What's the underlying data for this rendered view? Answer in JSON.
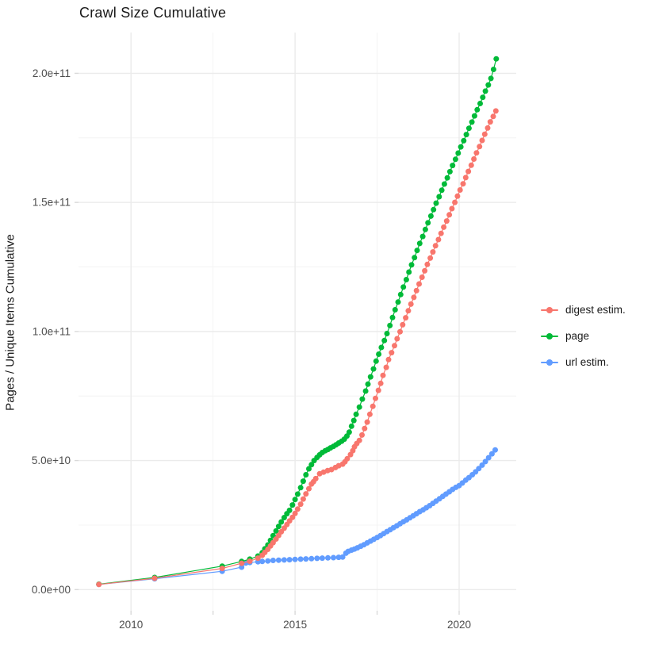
{
  "chart": {
    "title": "Crawl Size Cumulative",
    "y_axis_title": "Pages / Unique Items Cumulative",
    "x_axis_title": "",
    "background_color": "#ffffff",
    "major_grid_color": "#ebebeb",
    "minor_grid_color": "#f4f4f4",
    "tick_color": "#d9d9d9",
    "tick_label_color": "#4d4d4d"
  },
  "chart_data": {
    "type": "scatter",
    "style": "points connected by thin lines (ggplot geom_point + geom_line)",
    "title": "Crawl Size Cumulative",
    "xlabel": "",
    "ylabel": "Pages / Unique Items Cumulative",
    "x_unit": "decimal year",
    "value_unit": "1e9 pages (billions)",
    "xlim": [
      2008.4,
      2021.74
    ],
    "ylim_e9": [
      -8.2,
      215.8
    ],
    "grid": true,
    "legend_position": "right",
    "x_ticks": [
      {
        "label": "2010",
        "value": 2010
      },
      {
        "label": "2015",
        "value": 2015
      },
      {
        "label": "2020",
        "value": 2020
      }
    ],
    "x_minor": [
      2012.5,
      2017.5
    ],
    "y_ticks": [
      {
        "label": "0.0e+00",
        "value": 0
      },
      {
        "label": "5.0e+10",
        "value": 50
      },
      {
        "label": "1.0e+11",
        "value": 100
      },
      {
        "label": "1.5e+11",
        "value": 150
      },
      {
        "label": "2.0e+11",
        "value": 200
      }
    ],
    "y_minor": [
      25,
      75,
      125,
      175
    ],
    "point_radius": 3.5,
    "series": [
      {
        "name": "url estim.",
        "color": "#619CFF",
        "points": [
          [
            2009.02,
            2.0
          ],
          [
            2010.72,
            4.2
          ],
          [
            2012.78,
            7.1
          ],
          [
            2013.37,
            8.7
          ],
          [
            2013.5,
            10.3
          ],
          [
            2013.62,
            10.5
          ],
          [
            2013.87,
            10.8
          ],
          [
            2014.0,
            10.9
          ],
          [
            2014.17,
            11.1
          ],
          [
            2014.33,
            11.3
          ],
          [
            2014.5,
            11.4
          ],
          [
            2014.67,
            11.5
          ],
          [
            2014.83,
            11.6
          ],
          [
            2015.0,
            11.7
          ],
          [
            2015.17,
            11.8
          ],
          [
            2015.33,
            11.9
          ],
          [
            2015.5,
            12.0
          ],
          [
            2015.67,
            12.1
          ],
          [
            2015.83,
            12.2
          ],
          [
            2016.0,
            12.3
          ],
          [
            2016.17,
            12.4
          ],
          [
            2016.33,
            12.5
          ],
          [
            2016.45,
            12.6
          ],
          [
            2016.55,
            14.1
          ],
          [
            2016.62,
            14.8
          ],
          [
            2016.72,
            15.3
          ],
          [
            2016.81,
            15.7
          ],
          [
            2016.9,
            16.2
          ],
          [
            2017.0,
            16.8
          ],
          [
            2017.1,
            17.4
          ],
          [
            2017.2,
            18.1
          ],
          [
            2017.3,
            18.8
          ],
          [
            2017.4,
            19.5
          ],
          [
            2017.5,
            20.2
          ],
          [
            2017.6,
            20.9
          ],
          [
            2017.7,
            21.7
          ],
          [
            2017.8,
            22.5
          ],
          [
            2017.9,
            23.2
          ],
          [
            2018.0,
            24.0
          ],
          [
            2018.1,
            24.7
          ],
          [
            2018.2,
            25.5
          ],
          [
            2018.3,
            26.3
          ],
          [
            2018.4,
            27.0
          ],
          [
            2018.5,
            27.8
          ],
          [
            2018.6,
            28.6
          ],
          [
            2018.7,
            29.4
          ],
          [
            2018.8,
            30.2
          ],
          [
            2018.9,
            30.9
          ],
          [
            2019.0,
            31.7
          ],
          [
            2019.1,
            32.5
          ],
          [
            2019.2,
            33.4
          ],
          [
            2019.3,
            34.3
          ],
          [
            2019.4,
            35.2
          ],
          [
            2019.5,
            36.1
          ],
          [
            2019.6,
            37.0
          ],
          [
            2019.7,
            37.9
          ],
          [
            2019.8,
            38.8
          ],
          [
            2019.9,
            39.6
          ],
          [
            2020.0,
            40.3
          ],
          [
            2020.1,
            41.3
          ],
          [
            2020.2,
            42.4
          ],
          [
            2020.3,
            43.4
          ],
          [
            2020.4,
            44.5
          ],
          [
            2020.5,
            45.6
          ],
          [
            2020.6,
            46.9
          ],
          [
            2020.7,
            48.2
          ],
          [
            2020.8,
            49.6
          ],
          [
            2020.9,
            51.1
          ],
          [
            2021.0,
            52.6
          ],
          [
            2021.1,
            54.1
          ]
        ]
      },
      {
        "name": "page",
        "color": "#00BA38",
        "points": [
          [
            2009.02,
            2.1
          ],
          [
            2010.72,
            4.7
          ],
          [
            2012.78,
            9.1
          ],
          [
            2013.37,
            10.9
          ],
          [
            2013.62,
            11.8
          ],
          [
            2013.87,
            13.0
          ],
          [
            2014.0,
            14.3
          ],
          [
            2014.08,
            15.8
          ],
          [
            2014.17,
            17.3
          ],
          [
            2014.25,
            19.1
          ],
          [
            2014.33,
            20.9
          ],
          [
            2014.42,
            22.7
          ],
          [
            2014.5,
            24.5
          ],
          [
            2014.58,
            26.2
          ],
          [
            2014.67,
            27.9
          ],
          [
            2014.75,
            29.4
          ],
          [
            2014.83,
            30.7
          ],
          [
            2014.92,
            32.8
          ],
          [
            2015.0,
            34.9
          ],
          [
            2015.08,
            37.0
          ],
          [
            2015.17,
            39.5
          ],
          [
            2015.25,
            42.0
          ],
          [
            2015.33,
            44.5
          ],
          [
            2015.42,
            46.8
          ],
          [
            2015.5,
            48.4
          ],
          [
            2015.58,
            50.0
          ],
          [
            2015.67,
            51.2
          ],
          [
            2015.75,
            52.2
          ],
          [
            2015.83,
            53.1
          ],
          [
            2015.92,
            53.8
          ],
          [
            2016.0,
            54.3
          ],
          [
            2016.08,
            54.9
          ],
          [
            2016.17,
            55.5
          ],
          [
            2016.25,
            56.1
          ],
          [
            2016.33,
            56.8
          ],
          [
            2016.42,
            57.5
          ],
          [
            2016.5,
            58.3
          ],
          [
            2016.58,
            59.5
          ],
          [
            2016.65,
            61.0
          ],
          [
            2016.72,
            63.3
          ],
          [
            2016.79,
            65.5
          ],
          [
            2016.86,
            67.9
          ],
          [
            2016.96,
            70.7
          ],
          [
            2017.05,
            73.8
          ],
          [
            2017.15,
            76.9
          ],
          [
            2017.22,
            79.6
          ],
          [
            2017.3,
            82.4
          ],
          [
            2017.39,
            85.5
          ],
          [
            2017.47,
            88.5
          ],
          [
            2017.55,
            91.2
          ],
          [
            2017.63,
            93.8
          ],
          [
            2017.72,
            96.5
          ],
          [
            2017.8,
            99.2
          ],
          [
            2017.89,
            102.3
          ],
          [
            2017.97,
            105.4
          ],
          [
            2018.05,
            108.4
          ],
          [
            2018.14,
            111.4
          ],
          [
            2018.22,
            114.3
          ],
          [
            2018.3,
            117.2
          ],
          [
            2018.39,
            120.1
          ],
          [
            2018.47,
            123.0
          ],
          [
            2018.55,
            125.8
          ],
          [
            2018.64,
            128.6
          ],
          [
            2018.72,
            131.4
          ],
          [
            2018.8,
            134.1
          ],
          [
            2018.89,
            136.8
          ],
          [
            2018.97,
            139.5
          ],
          [
            2019.05,
            142.1
          ],
          [
            2019.14,
            144.7
          ],
          [
            2019.22,
            147.2
          ],
          [
            2019.3,
            149.7
          ],
          [
            2019.39,
            152.2
          ],
          [
            2019.47,
            154.7
          ],
          [
            2019.55,
            157.1
          ],
          [
            2019.64,
            159.5
          ],
          [
            2019.72,
            161.9
          ],
          [
            2019.8,
            164.3
          ],
          [
            2019.89,
            166.7
          ],
          [
            2019.97,
            169.1
          ],
          [
            2020.05,
            171.5
          ],
          [
            2020.14,
            173.9
          ],
          [
            2020.22,
            176.3
          ],
          [
            2020.3,
            178.7
          ],
          [
            2020.39,
            181.1
          ],
          [
            2020.47,
            183.5
          ],
          [
            2020.55,
            185.9
          ],
          [
            2020.64,
            188.3
          ],
          [
            2020.72,
            190.7
          ],
          [
            2020.8,
            193.1
          ],
          [
            2020.89,
            195.5
          ],
          [
            2020.97,
            198.0
          ],
          [
            2021.05,
            201.5
          ],
          [
            2021.13,
            205.6
          ]
        ]
      },
      {
        "name": "digest estim.",
        "color": "#F8766D",
        "points": [
          [
            2009.02,
            2.0
          ],
          [
            2010.72,
            4.4
          ],
          [
            2012.78,
            8.2
          ],
          [
            2013.37,
            10.2
          ],
          [
            2013.62,
            11.0
          ],
          [
            2013.87,
            12.2
          ],
          [
            2014.0,
            13.3
          ],
          [
            2014.08,
            14.4
          ],
          [
            2014.17,
            15.6
          ],
          [
            2014.25,
            16.9
          ],
          [
            2014.33,
            18.2
          ],
          [
            2014.42,
            19.6
          ],
          [
            2014.5,
            21.0
          ],
          [
            2014.58,
            22.4
          ],
          [
            2014.67,
            23.8
          ],
          [
            2014.75,
            25.2
          ],
          [
            2014.83,
            26.6
          ],
          [
            2014.92,
            28.0
          ],
          [
            2015.0,
            29.5
          ],
          [
            2015.08,
            31.2
          ],
          [
            2015.17,
            33.1
          ],
          [
            2015.25,
            35.1
          ],
          [
            2015.33,
            37.1
          ],
          [
            2015.42,
            39.1
          ],
          [
            2015.5,
            40.9
          ],
          [
            2015.56,
            41.8
          ],
          [
            2015.63,
            43.0
          ],
          [
            2015.75,
            44.9
          ],
          [
            2015.87,
            45.5
          ],
          [
            2015.99,
            46.1
          ],
          [
            2016.11,
            46.5
          ],
          [
            2016.23,
            47.3
          ],
          [
            2016.33,
            48.0
          ],
          [
            2016.45,
            48.6
          ],
          [
            2016.52,
            49.5
          ],
          [
            2016.59,
            50.7
          ],
          [
            2016.69,
            52.3
          ],
          [
            2016.76,
            53.8
          ],
          [
            2016.81,
            55.3
          ],
          [
            2016.88,
            56.6
          ],
          [
            2016.96,
            57.8
          ],
          [
            2017.04,
            59.9
          ],
          [
            2017.12,
            62.4
          ],
          [
            2017.2,
            64.9
          ],
          [
            2017.28,
            67.9
          ],
          [
            2017.37,
            71.0
          ],
          [
            2017.45,
            74.1
          ],
          [
            2017.54,
            77.2
          ],
          [
            2017.61,
            79.9
          ],
          [
            2017.68,
            83.0
          ],
          [
            2017.78,
            86.1
          ],
          [
            2017.85,
            89.1
          ],
          [
            2017.94,
            91.8
          ],
          [
            2018.03,
            94.5
          ],
          [
            2018.11,
            97.2
          ],
          [
            2018.2,
            99.9
          ],
          [
            2018.28,
            102.6
          ],
          [
            2018.37,
            105.3
          ],
          [
            2018.45,
            108.0
          ],
          [
            2018.53,
            110.6
          ],
          [
            2018.62,
            113.2
          ],
          [
            2018.7,
            115.8
          ],
          [
            2018.78,
            118.4
          ],
          [
            2018.87,
            121.0
          ],
          [
            2018.95,
            123.5
          ],
          [
            2019.03,
            126.0
          ],
          [
            2019.12,
            128.4
          ],
          [
            2019.2,
            130.8
          ],
          [
            2019.28,
            133.2
          ],
          [
            2019.37,
            135.6
          ],
          [
            2019.45,
            138.0
          ],
          [
            2019.53,
            140.4
          ],
          [
            2019.62,
            142.8
          ],
          [
            2019.7,
            145.2
          ],
          [
            2019.78,
            147.6
          ],
          [
            2019.87,
            150.0
          ],
          [
            2019.95,
            152.4
          ],
          [
            2020.03,
            154.8
          ],
          [
            2020.12,
            157.2
          ],
          [
            2020.2,
            159.6
          ],
          [
            2020.28,
            162.0
          ],
          [
            2020.37,
            164.4
          ],
          [
            2020.45,
            166.8
          ],
          [
            2020.53,
            169.2
          ],
          [
            2020.62,
            171.6
          ],
          [
            2020.7,
            174.0
          ],
          [
            2020.78,
            176.4
          ],
          [
            2020.87,
            178.8
          ],
          [
            2020.95,
            181.2
          ],
          [
            2021.04,
            183.3
          ],
          [
            2021.12,
            185.4
          ]
        ]
      }
    ],
    "legend": [
      {
        "label": "digest estim.",
        "color": "#F8766D"
      },
      {
        "label": "page",
        "color": "#00BA38"
      },
      {
        "label": "url estim.",
        "color": "#619CFF"
      }
    ]
  }
}
